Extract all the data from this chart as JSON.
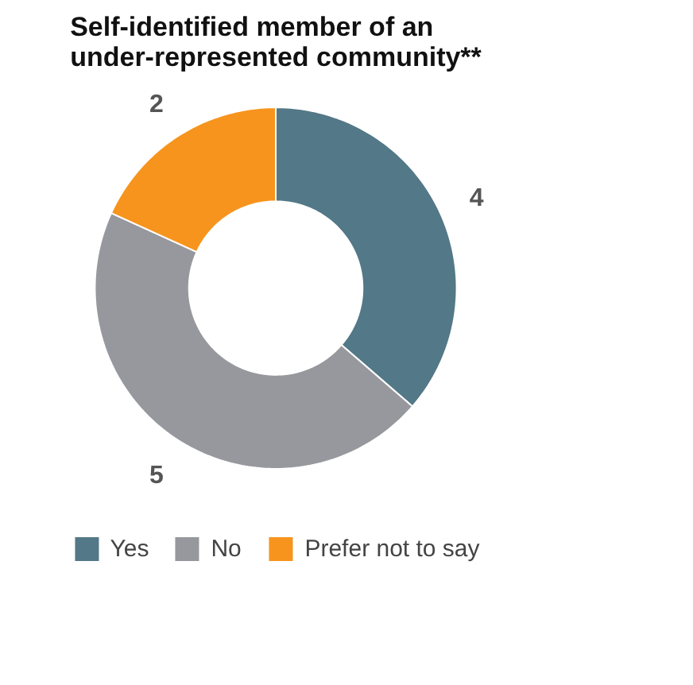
{
  "chart_data": {
    "type": "donut",
    "title": "Self-identified member of an under-represented community**",
    "categories": [
      "Yes",
      "No",
      "Prefer not to say"
    ],
    "values": [
      4,
      5,
      2
    ],
    "colors": [
      "#537887",
      "#97989d",
      "#f7941d"
    ],
    "data_labels": true,
    "legend": "bottom"
  }
}
